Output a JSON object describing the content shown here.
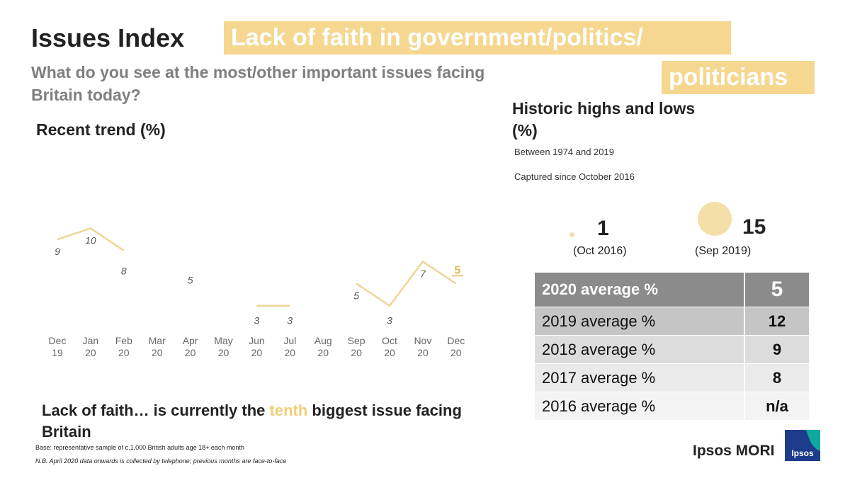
{
  "header": {
    "title": "Issues Index",
    "topic_line1": "Lack of faith in government/politics/",
    "topic_line2": "politicians",
    "question": "What do you see at the most/other important issues facing Britain today?"
  },
  "colors": {
    "accent": "#f5d78f",
    "line": "#f0d494",
    "last_label": "#e3b94f"
  },
  "chart_data": {
    "type": "line",
    "title": "Recent trend (%)",
    "categories": [
      [
        "Dec",
        "19"
      ],
      [
        "Jan",
        "20"
      ],
      [
        "Feb",
        "20"
      ],
      [
        "Mar",
        "20"
      ],
      [
        "Apr",
        "20"
      ],
      [
        "May",
        "20"
      ],
      [
        "Jun",
        "20"
      ],
      [
        "Jul",
        "20"
      ],
      [
        "Aug",
        "20"
      ],
      [
        "Sep",
        "20"
      ],
      [
        "Oct",
        "20"
      ],
      [
        "Nov",
        "20"
      ],
      [
        "Dec",
        "20"
      ]
    ],
    "values": [
      9,
      10,
      8,
      null,
      5,
      null,
      3,
      3,
      null,
      5,
      3,
      7,
      5
    ],
    "ylim": [
      0,
      14
    ],
    "grid": false,
    "legend": "none"
  },
  "historic": {
    "title": "Historic highs and lows (%)",
    "range_note": "Between 1974 and 2019",
    "captured_note": "Captured since October 2016",
    "low": {
      "value": "1",
      "date": "(Oct 2016)"
    },
    "high": {
      "value": "15",
      "date": "(Sep 2019)"
    }
  },
  "averages": {
    "header": {
      "label": "2020 average %",
      "value": "5"
    },
    "rows": [
      {
        "label": "2019 average %",
        "value": "12"
      },
      {
        "label": "2018 average %",
        "value": "9"
      },
      {
        "label": "2017 average %",
        "value": "8"
      },
      {
        "label": "2016 average %",
        "value": "n/a"
      }
    ]
  },
  "statement": {
    "before": "Lack of faith… is currently the ",
    "highlight": "tenth",
    "after": " biggest issue facing Britain"
  },
  "footer": {
    "base": "Base: representative sample of c.1,000 British adults age 18+ each month",
    "nb": "N.B. April 2020 data onwards is collected by telephone; previous months are face-to-face"
  },
  "brand": {
    "name": "Ipsos MORI",
    "logo_text": "Ipsos"
  }
}
